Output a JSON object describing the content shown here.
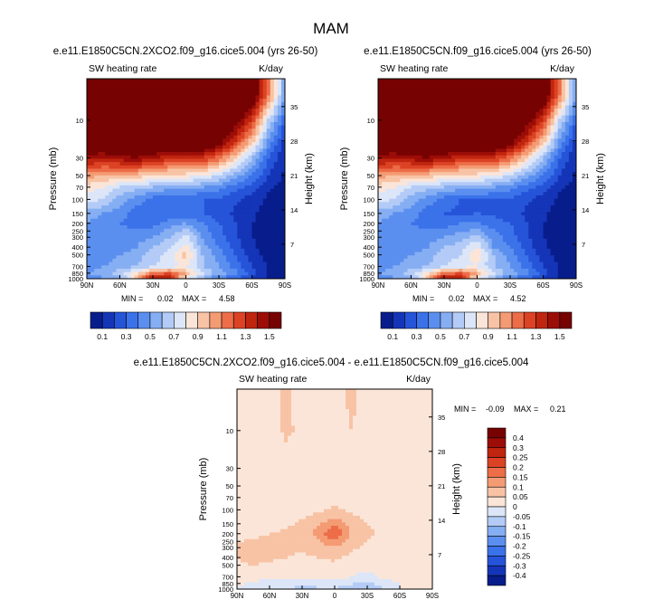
{
  "chart_data": {
    "type": "heatmap",
    "title": "MAM",
    "x_tick_labels": [
      "90N",
      "60N",
      "30N",
      "0",
      "30S",
      "60S",
      "90S"
    ],
    "x_tick_values": [
      90,
      60,
      30,
      0,
      -30,
      -60,
      -90
    ],
    "y_ticks": [
      10,
      30,
      50,
      70,
      100,
      150,
      200,
      250,
      300,
      400,
      500,
      700,
      850,
      1000
    ],
    "yrange_mb": [
      1000,
      3
    ],
    "height_ticks_km": [
      35,
      28,
      21,
      14,
      7
    ],
    "panels": [
      {
        "id": "2xco2",
        "title": "e.e11.E1850C5CN.2XCO2.f09_g16.cice5.004 (yrs 26-50)",
        "left_label": "SW heating rate",
        "units": "K/day",
        "ylabel": "Pressure (mb)",
        "ylabel_right": "Height (km)",
        "min": 0.02,
        "max": 4.58,
        "min_label": "MIN =",
        "min_value": "0.02",
        "max_label": "MAX =",
        "max_value": "4.58",
        "data": {
          "lats": [
            90,
            75,
            60,
            45,
            30,
            15,
            0,
            -15,
            -30,
            -45,
            -60,
            -75,
            -90
          ],
          "levels_mb": [
            5,
            10,
            20,
            30,
            50,
            70,
            100,
            150,
            200,
            300,
            400,
            500,
            700,
            850,
            950
          ],
          "values": [
            [
              1.8,
              1.8,
              1.8,
              1.8,
              1.8,
              1.8,
              1.8,
              1.8,
              1.8,
              1.8,
              1.7,
              1.1,
              0.5
            ],
            [
              1.8,
              1.8,
              1.8,
              1.8,
              1.8,
              1.8,
              1.8,
              1.8,
              1.8,
              1.6,
              1.3,
              0.7,
              0.3
            ],
            [
              1.7,
              1.7,
              1.75,
              1.75,
              1.75,
              1.75,
              1.75,
              1.7,
              1.55,
              1.25,
              0.9,
              0.45,
              0.15
            ],
            [
              1.45,
              1.4,
              1.45,
              1.5,
              1.4,
              1.35,
              1.35,
              1.3,
              1.15,
              0.9,
              0.6,
              0.3,
              0.1
            ],
            [
              1.05,
              1.0,
              1.0,
              0.95,
              0.9,
              0.85,
              0.85,
              0.8,
              0.7,
              0.55,
              0.4,
              0.2,
              0.08
            ],
            [
              0.85,
              0.8,
              0.7,
              0.65,
              0.6,
              0.55,
              0.55,
              0.5,
              0.45,
              0.35,
              0.25,
              0.12,
              0.06
            ],
            [
              0.75,
              0.7,
              0.55,
              0.45,
              0.35,
              0.3,
              0.3,
              0.3,
              0.28,
              0.22,
              0.15,
              0.08,
              0.04
            ],
            [
              0.55,
              0.5,
              0.45,
              0.35,
              0.3,
              0.3,
              0.35,
              0.3,
              0.25,
              0.18,
              0.12,
              0.06,
              0.03
            ],
            [
              0.5,
              0.45,
              0.4,
              0.35,
              0.35,
              0.45,
              0.5,
              0.4,
              0.3,
              0.2,
              0.1,
              0.05,
              0.03
            ],
            [
              0.45,
              0.4,
              0.45,
              0.45,
              0.5,
              0.6,
              0.75,
              0.5,
              0.35,
              0.22,
              0.1,
              0.05,
              0.03
            ],
            [
              0.4,
              0.4,
              0.45,
              0.5,
              0.6,
              0.7,
              0.85,
              0.55,
              0.4,
              0.25,
              0.12,
              0.05,
              0.03
            ],
            [
              0.4,
              0.45,
              0.5,
              0.55,
              0.65,
              0.75,
              0.95,
              0.6,
              0.45,
              0.3,
              0.15,
              0.06,
              0.03
            ],
            [
              0.45,
              0.5,
              0.55,
              0.6,
              0.7,
              0.75,
              0.8,
              0.6,
              0.5,
              0.35,
              0.2,
              0.08,
              0.04
            ],
            [
              0.5,
              0.55,
              0.65,
              0.85,
              1.1,
              1.2,
              1.0,
              0.75,
              0.55,
              0.45,
              0.25,
              0.1,
              0.05
            ],
            [
              0.45,
              0.5,
              0.6,
              0.9,
              1.4,
              1.3,
              0.85,
              0.6,
              0.45,
              0.35,
              0.2,
              0.08,
              0.04
            ]
          ]
        }
      },
      {
        "id": "control",
        "title": "e.e11.E1850C5CN.f09_g16.cice5.004 (yrs 26-50)",
        "left_label": "SW heating rate",
        "units": "K/day",
        "ylabel": "Pressure (mb)",
        "ylabel_right": "Height (km)",
        "min": 0.02,
        "max": 4.52,
        "min_label": "MIN =",
        "min_value": "0.02",
        "max_label": "MAX =",
        "max_value": "4.52",
        "data": {
          "lats": [
            90,
            75,
            60,
            45,
            30,
            15,
            0,
            -15,
            -30,
            -45,
            -60,
            -75,
            -90
          ],
          "levels_mb": [
            5,
            10,
            20,
            30,
            50,
            70,
            100,
            150,
            200,
            300,
            400,
            500,
            700,
            850,
            950
          ],
          "values": [
            [
              1.8,
              1.8,
              1.8,
              1.8,
              1.8,
              1.8,
              1.8,
              1.8,
              1.8,
              1.8,
              1.7,
              1.1,
              0.5
            ],
            [
              1.8,
              1.8,
              1.8,
              1.8,
              1.8,
              1.8,
              1.8,
              1.8,
              1.8,
              1.6,
              1.3,
              0.7,
              0.3
            ],
            [
              1.7,
              1.7,
              1.75,
              1.75,
              1.75,
              1.75,
              1.75,
              1.7,
              1.55,
              1.25,
              0.9,
              0.45,
              0.15
            ],
            [
              1.45,
              1.4,
              1.45,
              1.5,
              1.4,
              1.35,
              1.35,
              1.3,
              1.15,
              0.9,
              0.6,
              0.3,
              0.1
            ],
            [
              1.05,
              1.0,
              1.0,
              0.95,
              0.9,
              0.85,
              0.85,
              0.8,
              0.7,
              0.55,
              0.4,
              0.2,
              0.08
            ],
            [
              0.85,
              0.8,
              0.7,
              0.65,
              0.6,
              0.55,
              0.55,
              0.5,
              0.45,
              0.35,
              0.25,
              0.12,
              0.06
            ],
            [
              0.75,
              0.7,
              0.55,
              0.45,
              0.35,
              0.3,
              0.3,
              0.3,
              0.28,
              0.22,
              0.15,
              0.08,
              0.04
            ],
            [
              0.55,
              0.5,
              0.45,
              0.35,
              0.3,
              0.28,
              0.3,
              0.28,
              0.25,
              0.18,
              0.12,
              0.06,
              0.03
            ],
            [
              0.5,
              0.45,
              0.4,
              0.35,
              0.35,
              0.4,
              0.4,
              0.35,
              0.3,
              0.2,
              0.1,
              0.05,
              0.03
            ],
            [
              0.45,
              0.4,
              0.45,
              0.45,
              0.5,
              0.55,
              0.65,
              0.45,
              0.35,
              0.22,
              0.1,
              0.05,
              0.03
            ],
            [
              0.4,
              0.4,
              0.45,
              0.5,
              0.6,
              0.65,
              0.8,
              0.5,
              0.4,
              0.25,
              0.12,
              0.05,
              0.03
            ],
            [
              0.4,
              0.45,
              0.5,
              0.55,
              0.65,
              0.7,
              0.9,
              0.6,
              0.45,
              0.3,
              0.15,
              0.06,
              0.03
            ],
            [
              0.45,
              0.5,
              0.55,
              0.6,
              0.7,
              0.75,
              0.8,
              0.6,
              0.5,
              0.35,
              0.2,
              0.08,
              0.04
            ],
            [
              0.5,
              0.55,
              0.65,
              0.85,
              1.1,
              1.2,
              1.0,
              0.75,
              0.55,
              0.45,
              0.25,
              0.1,
              0.05
            ],
            [
              0.45,
              0.5,
              0.6,
              0.9,
              1.4,
              1.3,
              0.85,
              0.6,
              0.45,
              0.35,
              0.2,
              0.08,
              0.04
            ]
          ]
        }
      },
      {
        "id": "difference",
        "title": "e.e11.E1850C5CN.2XCO2.f09_g16.cice5.004 - e.e11.E1850C5CN.f09_g16.cice5.004",
        "left_label": "SW heating rate",
        "units": "K/day",
        "ylabel": "Pressure (mb)",
        "ylabel_right": "Height (km)",
        "min": -0.09,
        "max": 0.21,
        "min_label": "MIN =",
        "min_value": "-0.09",
        "max_label": "MAX =",
        "max_value": "0.21",
        "data": {
          "lats": [
            90,
            75,
            60,
            45,
            30,
            15,
            0,
            -15,
            -30,
            -45,
            -60,
            -75,
            -90
          ],
          "levels_mb": [
            5,
            10,
            20,
            30,
            50,
            70,
            100,
            150,
            200,
            300,
            400,
            500,
            700,
            850,
            950
          ],
          "values": [
            [
              0.01,
              0.01,
              0.02,
              0.06,
              0.03,
              0.02,
              0.02,
              0.06,
              0.03,
              0.02,
              0.02,
              0.01,
              0.01
            ],
            [
              0.01,
              0.01,
              0.02,
              0.06,
              0.04,
              0.02,
              0.02,
              0.05,
              0.03,
              0.02,
              0.02,
              0.01,
              0.01
            ],
            [
              0.01,
              0.01,
              0.02,
              0.04,
              0.02,
              0.02,
              0.02,
              0.03,
              0.02,
              0.02,
              0.01,
              0.01,
              0.01
            ],
            [
              0.01,
              0.01,
              0.02,
              0.02,
              0.02,
              0.02,
              0.02,
              0.02,
              0.02,
              0.02,
              0.01,
              0.01,
              0.01
            ],
            [
              0.01,
              0.01,
              0.02,
              0.02,
              0.02,
              0.02,
              0.02,
              0.02,
              0.02,
              0.01,
              0.01,
              0.01,
              0.01
            ],
            [
              0.01,
              0.01,
              0.02,
              0.02,
              0.02,
              0.02,
              0.02,
              0.02,
              0.02,
              0.01,
              0.01,
              0.01,
              0.01
            ],
            [
              0.01,
              0.01,
              0.02,
              0.02,
              0.03,
              0.04,
              0.06,
              0.04,
              0.03,
              0.02,
              0.01,
              0.01,
              0.01
            ],
            [
              0.02,
              0.02,
              0.03,
              0.04,
              0.06,
              0.09,
              0.13,
              0.08,
              0.05,
              0.03,
              0.02,
              0.01,
              0.01
            ],
            [
              0.03,
              0.04,
              0.05,
              0.06,
              0.07,
              0.12,
              0.21,
              0.09,
              0.06,
              0.04,
              0.02,
              0.01,
              0.01
            ],
            [
              0.06,
              0.07,
              0.07,
              0.06,
              0.06,
              0.07,
              0.1,
              0.06,
              0.04,
              0.03,
              0.02,
              0.01,
              0.01
            ],
            [
              0.05,
              0.07,
              0.06,
              0.05,
              0.04,
              0.05,
              0.06,
              0.04,
              0.03,
              0.02,
              0.02,
              0.01,
              0.01
            ],
            [
              0.04,
              0.05,
              0.04,
              0.04,
              0.03,
              0.04,
              0.04,
              0.03,
              0.02,
              0.02,
              0.01,
              0.01,
              0.01
            ],
            [
              0.02,
              0.02,
              0.02,
              0.02,
              0.01,
              0.02,
              0.02,
              0.0,
              -0.02,
              0.01,
              0.01,
              0.01,
              0.01
            ],
            [
              0.01,
              -0.01,
              -0.02,
              -0.03,
              -0.03,
              -0.04,
              -0.02,
              -0.04,
              -0.06,
              -0.02,
              0.0,
              0.01,
              0.01
            ],
            [
              0.0,
              -0.02,
              -0.02,
              -0.04,
              -0.06,
              -0.05,
              -0.04,
              -0.08,
              -0.09,
              -0.04,
              0.0,
              0.01,
              0.01
            ]
          ]
        }
      }
    ],
    "colorbar_main": {
      "levels": [
        0.1,
        0.2,
        0.3,
        0.4,
        0.5,
        0.6,
        0.7,
        0.8,
        0.9,
        1.0,
        1.1,
        1.2,
        1.3,
        1.4,
        1.5
      ],
      "labels": [
        "0.1",
        "0.3",
        "0.5",
        "0.7",
        "0.9",
        "1.1",
        "1.3",
        "1.5"
      ],
      "colors": [
        "#081d8c",
        "#1535b8",
        "#2654d9",
        "#3b72ea",
        "#5b8fef",
        "#86aef3",
        "#b3cbf6",
        "#dce6f8",
        "#fbe5d8",
        "#f8c3a5",
        "#f49b74",
        "#ec6d48",
        "#dc4325",
        "#c0250f",
        "#9c0d08",
        "#760202"
      ]
    },
    "colorbar_diff": {
      "levels": [
        -0.4,
        -0.3,
        -0.25,
        -0.2,
        -0.15,
        -0.1,
        -0.05,
        0,
        0.05,
        0.1,
        0.15,
        0.2,
        0.25,
        0.3,
        0.4
      ],
      "labels": [
        "0.4",
        "0.3",
        "0.25",
        "0.2",
        "0.15",
        "0.1",
        "0.05",
        "0",
        "-0.05",
        "-0.1",
        "-0.15",
        "-0.2",
        "-0.25",
        "-0.3",
        "-0.4"
      ],
      "colors": [
        "#081d8c",
        "#1535b8",
        "#2654d9",
        "#3b72ea",
        "#5b8fef",
        "#86aef3",
        "#b3cbf6",
        "#dce6f8",
        "#fbe5d8",
        "#f8c3a5",
        "#f49b74",
        "#ec6d48",
        "#dc4325",
        "#c0250f",
        "#9c0d08",
        "#760202"
      ]
    }
  }
}
